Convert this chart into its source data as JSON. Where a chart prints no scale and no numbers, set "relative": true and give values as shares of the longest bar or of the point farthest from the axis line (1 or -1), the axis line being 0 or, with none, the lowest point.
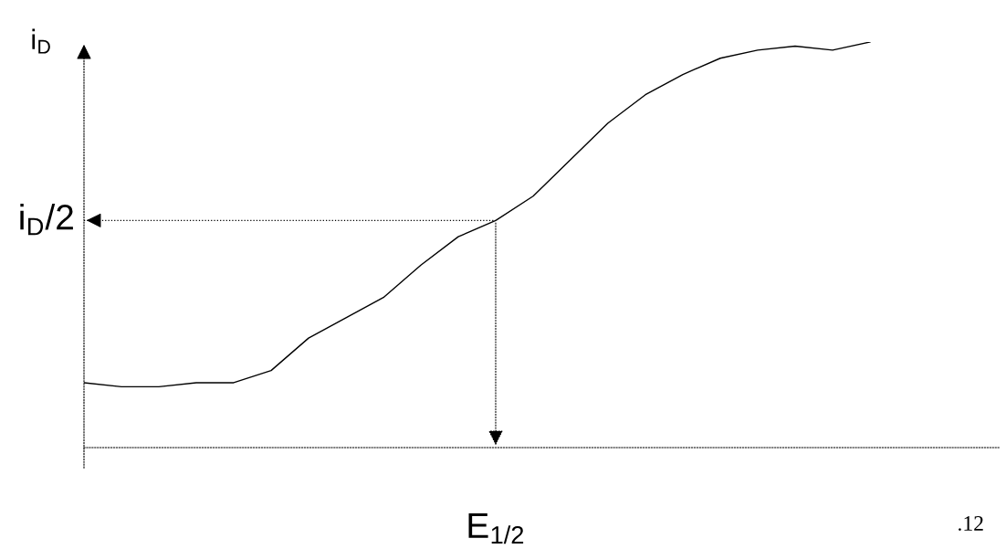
{
  "chart_data": {
    "type": "line",
    "relative": true,
    "ylabel": "i$_{D}$",
    "categories": [
      null,
      null,
      null,
      null,
      null,
      null,
      null,
      null,
      null,
      null,
      null,
      null,
      null,
      null,
      null,
      null,
      null,
      null,
      null,
      null,
      null,
      null
    ],
    "series": [
      {
        "color": "#000000",
        "values": [
          0.16,
          0.15,
          0.15,
          0.16,
          0.16,
          0.19,
          0.27,
          0.32,
          0.37,
          0.45,
          0.52,
          0.56,
          0.62,
          0.71,
          0.8,
          0.87,
          0.92,
          0.96,
          0.98,
          0.99,
          0.98,
          1.0
        ]
      }
    ],
    "ref_lines": [
      {
        "axis": "y",
        "value": 0.56,
        "label": "i$_{D}$/2",
        "line_style": "dotted"
      }
    ],
    "annotations": [
      "E$_{1/2}$",
      ".12"
    ],
    "grid": false,
    "legend": false,
    "line_style": "solid"
  }
}
